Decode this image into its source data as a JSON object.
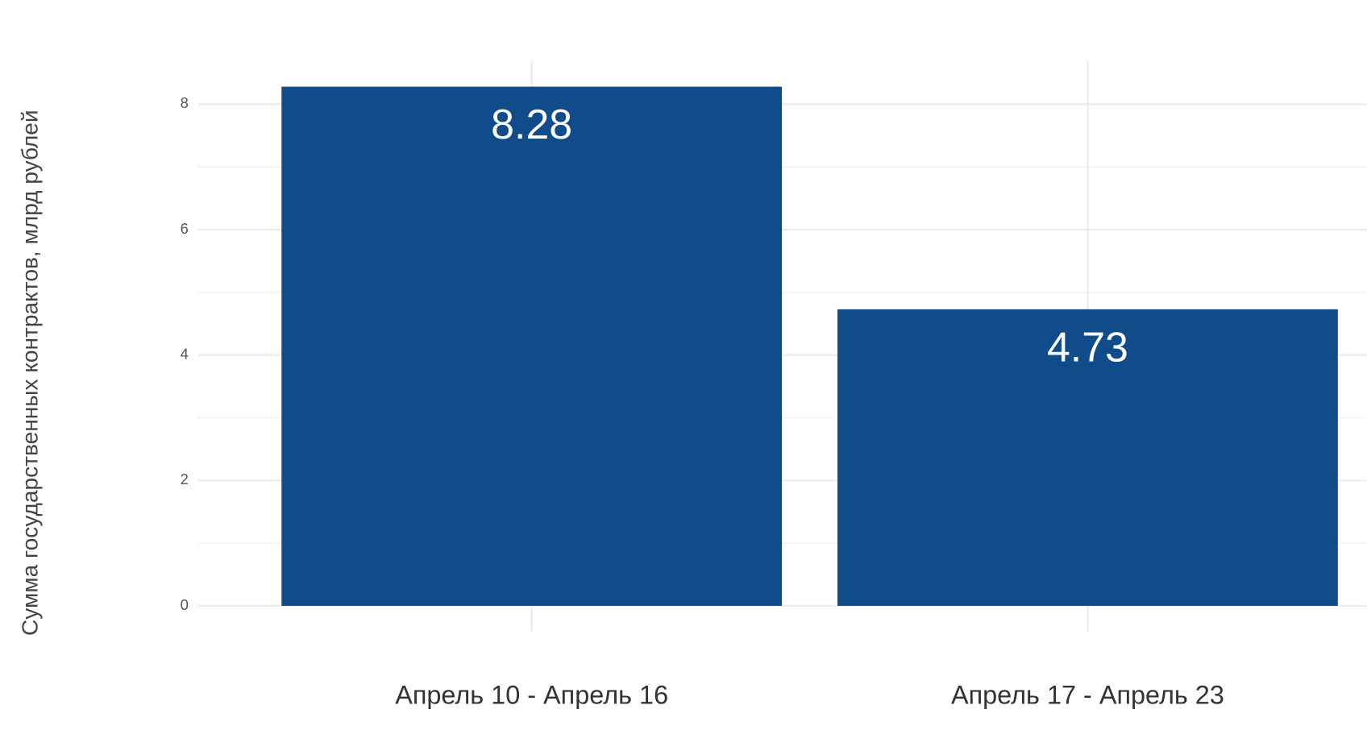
{
  "chart_data": {
    "type": "bar",
    "y_label": "Сумма государственных контрактов, млрд рублей",
    "categories": [
      "Апрель 10 - Апрель 16",
      "Апрель 17 - Апрель 23"
    ],
    "values": [
      8.28,
      4.73
    ],
    "color": "#0f4c89",
    "ylim": [
      -0.41,
      8.69
    ],
    "yticks": [
      0,
      2,
      4,
      6,
      8
    ],
    "yminor": [
      1,
      3,
      5,
      7
    ],
    "grid": true
  }
}
